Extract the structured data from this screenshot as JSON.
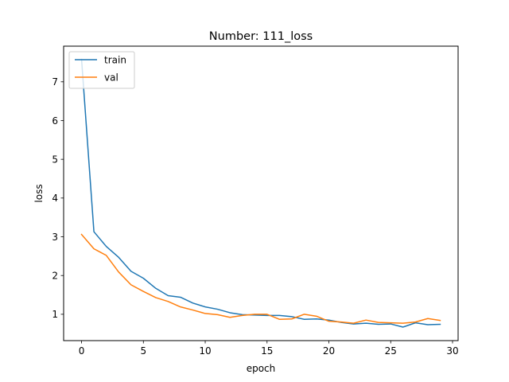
{
  "chart_data": {
    "type": "line",
    "title": "Number: 111_loss",
    "xlabel": "epoch",
    "ylabel": "loss",
    "xlim": [
      -1.45,
      30.45
    ],
    "ylim": [
      0.32,
      7.92
    ],
    "xticks": [
      0,
      5,
      10,
      15,
      20,
      25,
      30
    ],
    "yticks": [
      1,
      2,
      3,
      4,
      5,
      6,
      7
    ],
    "grid": false,
    "legend": "top-left",
    "x": [
      0,
      1,
      2,
      3,
      4,
      5,
      6,
      7,
      8,
      9,
      10,
      11,
      12,
      13,
      14,
      15,
      16,
      17,
      18,
      19,
      20,
      21,
      22,
      23,
      24,
      25,
      26,
      27,
      28,
      29
    ],
    "series": [
      {
        "name": "train",
        "color": "#1f77b4",
        "values": [
          7.58,
          3.13,
          2.75,
          2.47,
          2.11,
          1.93,
          1.67,
          1.48,
          1.44,
          1.29,
          1.19,
          1.13,
          1.04,
          0.99,
          0.98,
          0.97,
          0.97,
          0.94,
          0.87,
          0.88,
          0.85,
          0.79,
          0.75,
          0.77,
          0.74,
          0.75,
          0.67,
          0.78,
          0.73,
          0.74
        ]
      },
      {
        "name": "val",
        "color": "#ff7f0e",
        "values": [
          3.06,
          2.69,
          2.52,
          2.09,
          1.76,
          1.59,
          1.43,
          1.33,
          1.19,
          1.11,
          1.02,
          0.99,
          0.92,
          0.97,
          1.0,
          1.0,
          0.87,
          0.88,
          1.0,
          0.95,
          0.82,
          0.8,
          0.77,
          0.85,
          0.79,
          0.78,
          0.77,
          0.8,
          0.89,
          0.84
        ]
      }
    ]
  }
}
